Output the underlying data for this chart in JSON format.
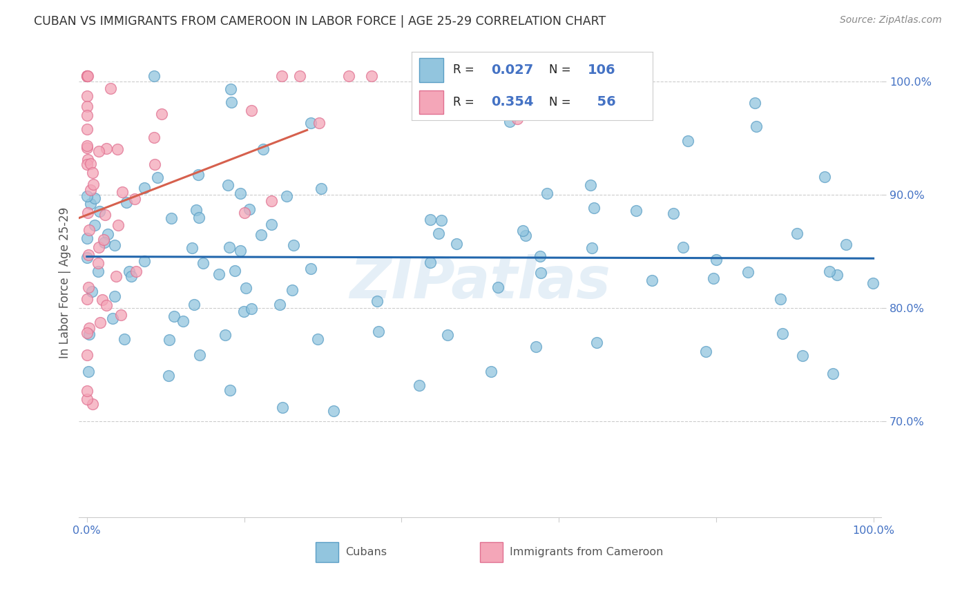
{
  "title": "CUBAN VS IMMIGRANTS FROM CAMEROON IN LABOR FORCE | AGE 25-29 CORRELATION CHART",
  "source": "Source: ZipAtlas.com",
  "ylabel": "In Labor Force | Age 25-29",
  "xlim": [
    -0.01,
    1.01
  ],
  "ylim": [
    0.615,
    1.03
  ],
  "yticks": [
    0.7,
    0.8,
    0.9,
    1.0
  ],
  "ytick_labels": [
    "70.0%",
    "80.0%",
    "90.0%",
    "100.0%"
  ],
  "cubans_R": 0.027,
  "cubans_N": 106,
  "cameroon_R": 0.354,
  "cameroon_N": 56,
  "legend_label1": "Cubans",
  "legend_label2": "Immigrants from Cameroon",
  "watermark": "ZIPatlas",
  "blue_scatter_color": "#92c5de",
  "blue_scatter_edge": "#5a9ec5",
  "pink_scatter_color": "#f4a6b8",
  "pink_scatter_edge": "#e07090",
  "blue_line_color": "#2166ac",
  "pink_line_color": "#d6604d",
  "axis_label_color": "#4472C4",
  "title_color": "#333333",
  "source_color": "#888888",
  "ylabel_color": "#555555",
  "grid_color": "#cccccc",
  "legend_border_color": "#cccccc",
  "watermark_color": "#cce0f0"
}
